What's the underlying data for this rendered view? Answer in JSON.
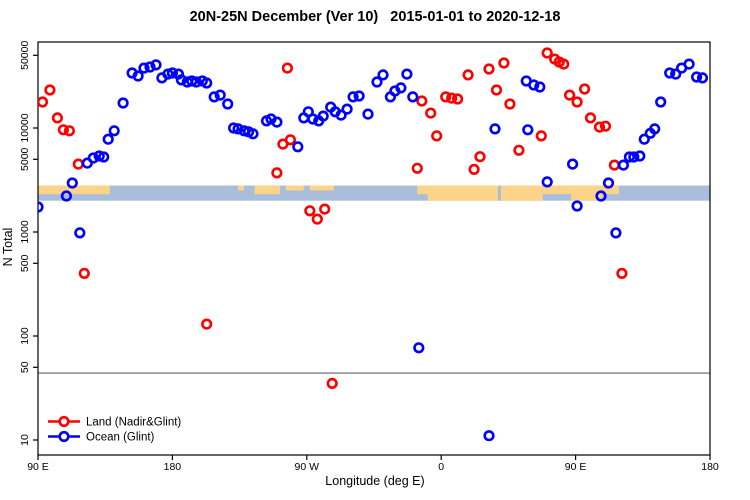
{
  "chart_data": {
    "type": "scatter",
    "title": "20N-25N December (Ver 10)   2015-01-01 to 2020-12-18",
    "xlabel": "Longitude (deg E)",
    "ylabel": "N Total",
    "x_axis": {
      "domain_deg": [
        90,
        540
      ],
      "ticks": [
        {
          "deg": 90,
          "label": "90 E"
        },
        {
          "deg": 180,
          "label": "180"
        },
        {
          "deg": 270,
          "label": "90 W"
        },
        {
          "deg": 360,
          "label": "0"
        },
        {
          "deg": 450,
          "label": "90 E"
        },
        {
          "deg": 540,
          "label": "180"
        }
      ]
    },
    "y_axis": {
      "scale": "log10",
      "range": [
        10,
        50000
      ],
      "ticks": [
        50000,
        10000,
        5000,
        1000,
        500,
        100,
        50,
        10
      ]
    },
    "threshold_line_value": 44,
    "colors": {
      "land_series": "#ff0000",
      "ocean_series": "#0000ff",
      "map_land": "#fbd389",
      "map_ocean": "#a9bedb",
      "threshold_line": "#808080",
      "frame": "#000000"
    },
    "map_band": {
      "value_top": 2800,
      "value_bottom": 2000,
      "land_segments": [
        {
          "from": 90,
          "to": 138,
          "part": "top"
        },
        {
          "from": 224,
          "to": 228,
          "part": "topthin"
        },
        {
          "from": 235,
          "to": 252,
          "part": "top"
        },
        {
          "from": 256,
          "to": 268,
          "part": "topthin"
        },
        {
          "from": 272,
          "to": 288,
          "part": "topthin"
        },
        {
          "from": 344,
          "to": 352,
          "part": "top"
        },
        {
          "from": 351,
          "to": 398,
          "part": "full"
        },
        {
          "from": 400,
          "to": 428,
          "part": "full"
        },
        {
          "from": 428,
          "to": 447,
          "part": "top"
        },
        {
          "from": 447,
          "to": 468,
          "part": "full"
        },
        {
          "from": 468,
          "to": 479,
          "part": "top"
        }
      ]
    },
    "series": [
      {
        "name": "Land (Nadir&Glint)",
        "color": "#ff0000",
        "points": [
          [
            98,
            23200
          ],
          [
            93,
            17800
          ],
          [
            103,
            12500
          ],
          [
            107,
            9600
          ],
          [
            111,
            9400
          ],
          [
            117,
            4500
          ],
          [
            257,
            37700
          ],
          [
            254,
            7000
          ],
          [
            259,
            7700
          ],
          [
            250,
            3700
          ],
          [
            272,
            1600
          ],
          [
            277,
            1330
          ],
          [
            282,
            1660
          ],
          [
            121,
            400
          ],
          [
            203,
            130
          ],
          [
            287,
            35
          ],
          [
            347,
            18200
          ],
          [
            353,
            13900
          ],
          [
            363,
            19900
          ],
          [
            367,
            19400
          ],
          [
            371,
            19000
          ],
          [
            357,
            8400
          ],
          [
            378,
            32400
          ],
          [
            392,
            36900
          ],
          [
            402,
            42200
          ],
          [
            397,
            23200
          ],
          [
            406,
            17000
          ],
          [
            412,
            6100
          ],
          [
            386,
            5300
          ],
          [
            382,
            4000
          ],
          [
            344,
            4100
          ],
          [
            427,
            8400
          ],
          [
            431,
            52600
          ],
          [
            436,
            46000
          ],
          [
            439,
            43100
          ],
          [
            442,
            41200
          ],
          [
            446,
            20700
          ],
          [
            451,
            17800
          ],
          [
            456,
            23700
          ],
          [
            460,
            12500
          ],
          [
            466,
            10200
          ],
          [
            470,
            10400
          ],
          [
            476,
            4400
          ],
          [
            481,
            400
          ]
        ]
      },
      {
        "name": "Ocean (Glint)",
        "color": "#0000ff",
        "points": [
          [
            90,
            1740
          ],
          [
            109,
            2220
          ],
          [
            113,
            2960
          ],
          [
            118,
            980
          ],
          [
            123,
            4600
          ],
          [
            127,
            5150
          ],
          [
            131,
            5380
          ],
          [
            134,
            5260
          ],
          [
            137,
            7800
          ],
          [
            141,
            9400
          ],
          [
            147,
            17400
          ],
          [
            153,
            33800
          ],
          [
            157,
            31600
          ],
          [
            161,
            37700
          ],
          [
            165,
            38600
          ],
          [
            169,
            40400
          ],
          [
            173,
            30300
          ],
          [
            177,
            33000
          ],
          [
            180,
            33800
          ],
          [
            184,
            33000
          ],
          [
            186,
            29000
          ],
          [
            190,
            27700
          ],
          [
            193,
            28300
          ],
          [
            196,
            27700
          ],
          [
            200,
            28300
          ],
          [
            203,
            27100
          ],
          [
            208,
            19900
          ],
          [
            212,
            20700
          ],
          [
            217,
            17000
          ],
          [
            221,
            10000
          ],
          [
            224,
            9800
          ],
          [
            228,
            9400
          ],
          [
            231,
            9200
          ],
          [
            234,
            8800
          ],
          [
            243,
            11700
          ],
          [
            246,
            12200
          ],
          [
            250,
            11400
          ],
          [
            264,
            6600
          ],
          [
            268,
            12500
          ],
          [
            271,
            14300
          ],
          [
            274,
            12200
          ],
          [
            278,
            11700
          ],
          [
            281,
            13000
          ],
          [
            286,
            15900
          ],
          [
            289,
            14300
          ],
          [
            293,
            13300
          ],
          [
            297,
            15200
          ],
          [
            301,
            19900
          ],
          [
            305,
            20300
          ],
          [
            311,
            13600
          ],
          [
            317,
            27700
          ],
          [
            321,
            32400
          ],
          [
            326,
            19900
          ],
          [
            329,
            22700
          ],
          [
            333,
            24300
          ],
          [
            337,
            33000
          ],
          [
            341,
            19900
          ],
          [
            345,
            77
          ],
          [
            392,
            11
          ],
          [
            396,
            9800
          ],
          [
            418,
            9600
          ],
          [
            417,
            28300
          ],
          [
            422,
            25900
          ],
          [
            426,
            24800
          ],
          [
            431,
            3030
          ],
          [
            448,
            4500
          ],
          [
            451,
            1780
          ],
          [
            467,
            2220
          ],
          [
            472,
            2960
          ],
          [
            477,
            980
          ],
          [
            482,
            4400
          ],
          [
            486,
            5260
          ],
          [
            489,
            5260
          ],
          [
            493,
            5380
          ],
          [
            496,
            7800
          ],
          [
            500,
            8900
          ],
          [
            503,
            9800
          ],
          [
            507,
            17800
          ],
          [
            513,
            33800
          ],
          [
            517,
            33000
          ],
          [
            521,
            37700
          ],
          [
            526,
            41200
          ],
          [
            531,
            30900
          ],
          [
            535,
            30300
          ]
        ]
      }
    ],
    "legend": {
      "entries": [
        "Land (Nadir&Glint)",
        "Ocean (Glint)"
      ],
      "position": "bottom-left"
    }
  }
}
